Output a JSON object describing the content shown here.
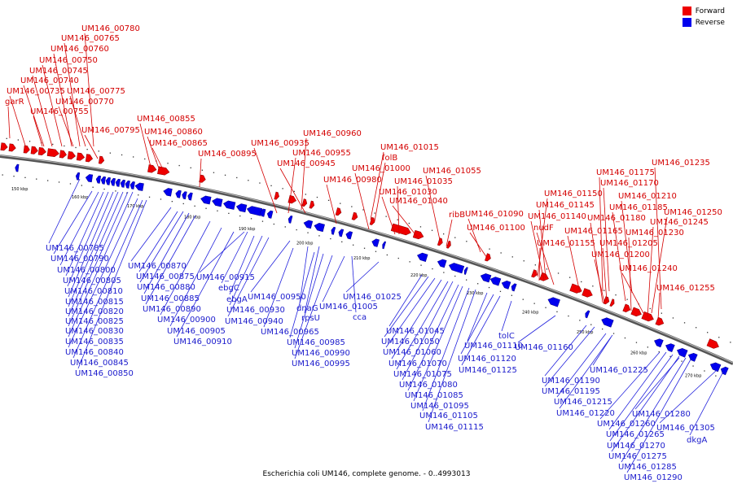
{
  "legend": [
    {
      "label": "Forward",
      "color": "#ee0000"
    },
    {
      "label": "Reverse",
      "color": "#0000ee"
    }
  ],
  "caption": "Escherichia coli UM146, complete genome. - 0..4993013",
  "ticks": [
    "150 kbp",
    "160 kbp",
    "170 kbp",
    "180 kbp",
    "190 kbp",
    "200 kbp",
    "210 kbp",
    "220 kbp",
    "230 kbp",
    "240 kbp",
    "250 kbp",
    "260 kbp",
    "270 kbp"
  ],
  "forward_labels": [
    "UM146_00780",
    "UM146_00765",
    "UM146_00760",
    "UM146_00750",
    "UM146_00745",
    "UM146_00740",
    "UM146_00735",
    "UM146_00775",
    "garR",
    "UM146_00770",
    "UM146_00755",
    "UM146_00795",
    "UM146_00855",
    "UM146_00860",
    "UM146_00865",
    "UM146_00895",
    "UM146_00960",
    "UM146_00935",
    "UM146_00955",
    "UM146_00945",
    "UM146_01015",
    "folB",
    "UM146_01000",
    "UM146_00980",
    "UM146_01035",
    "UM146_01030",
    "UM146_01040",
    "UM146_01055",
    "ribB",
    "UM146_01090",
    "UM146_01100",
    "UM146_01235",
    "UM146_01175",
    "UM146_01170",
    "UM146_01150",
    "UM146_01210",
    "UM146_01145",
    "UM146_01185",
    "UM146_01140",
    "UM146_01180",
    "UM146_01250",
    "nudF",
    "UM146_01245",
    "UM146_01165",
    "UM146_01230",
    "UM146_01155",
    "UM146_01205",
    "UM146_01200",
    "UM146_01240",
    "UM146_01255"
  ],
  "reverse_labels": [
    "UM146_00785",
    "UM146_00790",
    "UM146_00800",
    "UM146_00805",
    "UM146_00810",
    "UM146_00815",
    "UM146_00820",
    "UM146_00825",
    "UM146_00830",
    "UM146_00835",
    "UM146_00840",
    "UM146_00845",
    "UM146_00850",
    "UM146_00870",
    "UM146_00875",
    "UM146_00880",
    "UM146_00885",
    "UM146_00890",
    "UM146_00900",
    "UM146_00905",
    "UM146_00910",
    "UM146_00915",
    "ebgC",
    "ebgA",
    "UM146_00930",
    "UM146_00940",
    "UM146_00950",
    "dnaG",
    "rpsU",
    "UM146_00965",
    "UM146_00985",
    "UM146_00990",
    "UM146_00995",
    "UM146_01025",
    "UM146_01005",
    "cca",
    "UM146_01045",
    "UM146_01050",
    "UM146_01060",
    "UM146_01070",
    "UM146_01075",
    "UM146_01080",
    "UM146_01085",
    "UM146_01095",
    "UM146_01105",
    "UM146_01115",
    "UM146_01110",
    "UM146_01120",
    "UM146_01125",
    "tolC",
    "UM146_01160",
    "UM146_01190",
    "UM146_01195",
    "UM146_01215",
    "UM146_01220",
    "UM146_01225",
    "UM146_01260",
    "UM146_01265",
    "UM146_01270",
    "UM146_01275",
    "UM146_01285",
    "UM146_01290",
    "UM146_01280",
    "UM146_01305",
    "dkgA"
  ]
}
